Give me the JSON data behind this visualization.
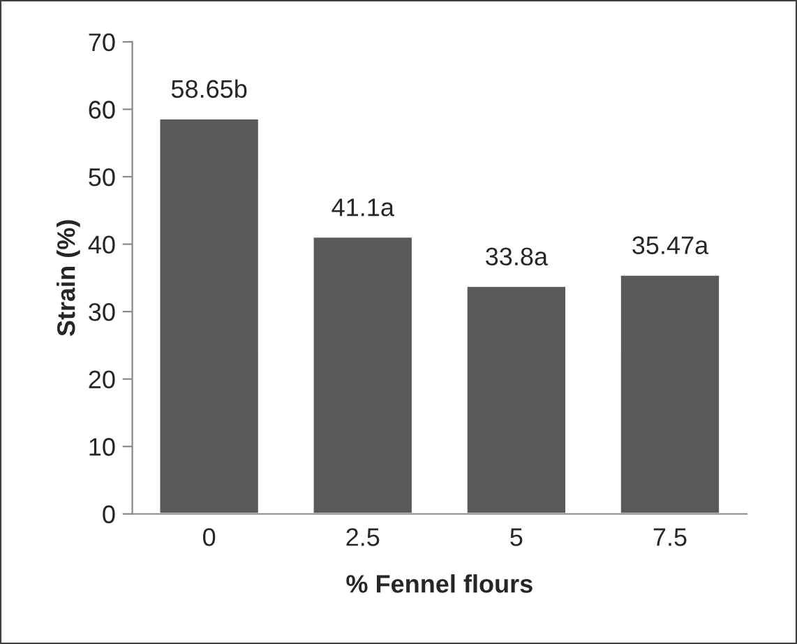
{
  "chart_data": {
    "type": "bar",
    "xlabel": "% Fennel flours",
    "ylabel": "Strain (%)",
    "categories": [
      "0",
      "2.5",
      "5",
      "7.5"
    ],
    "values": [
      58.65,
      41.1,
      33.8,
      35.47
    ],
    "value_labels": [
      "58.65b",
      "41.1a",
      "33.8a",
      "35.47a"
    ],
    "color": "#595959",
    "ylim": [
      0,
      70
    ],
    "yticks": [
      0,
      10,
      20,
      30,
      40,
      50,
      60,
      70
    ],
    "grid": false,
    "legend": false
  }
}
